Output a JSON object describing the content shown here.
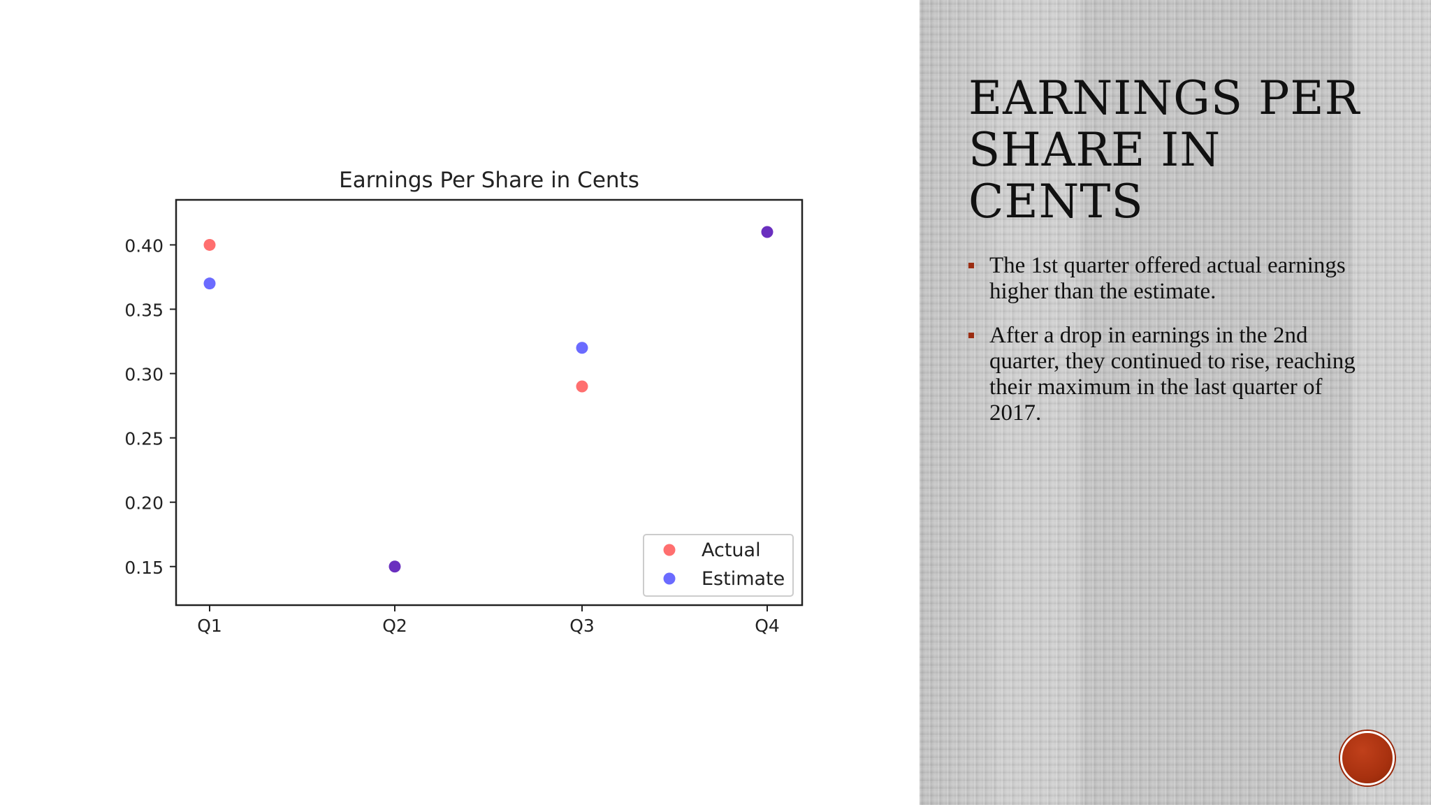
{
  "slide": {
    "title": "EARNINGS PER SHARE IN CENTS",
    "bullets": [
      "The 1st quarter offered actual earnings higher than the estimate.",
      "After a drop in earnings in the 2nd quarter, they continued to rise, reaching their maximum in the last quarter of 2017."
    ],
    "colors": {
      "accent": "#9b2d12",
      "right_panel_bg": "#c8c8c8",
      "badge": "#a8310f"
    }
  },
  "chart_data": {
    "type": "scatter",
    "title": "Earnings Per Share in Cents",
    "xlabel": "",
    "ylabel": "",
    "categories": [
      "Q1",
      "Q2",
      "Q3",
      "Q4"
    ],
    "ylim": [
      0.12,
      0.435
    ],
    "yticks": [
      0.15,
      0.2,
      0.25,
      0.3,
      0.35,
      0.4
    ],
    "ytick_labels": [
      "0.15",
      "0.20",
      "0.25",
      "0.30",
      "0.35",
      "0.40"
    ],
    "grid": false,
    "legend_position": "bottom-right",
    "series": [
      {
        "name": "Actual",
        "color": "#ff6f6f",
        "values": [
          0.4,
          0.15,
          0.29,
          0.41
        ]
      },
      {
        "name": "Estimate",
        "color": "#6b6bff",
        "values": [
          0.37,
          0.15,
          0.32,
          0.41
        ]
      }
    ],
    "overlap_color": "#6a2fbf"
  }
}
